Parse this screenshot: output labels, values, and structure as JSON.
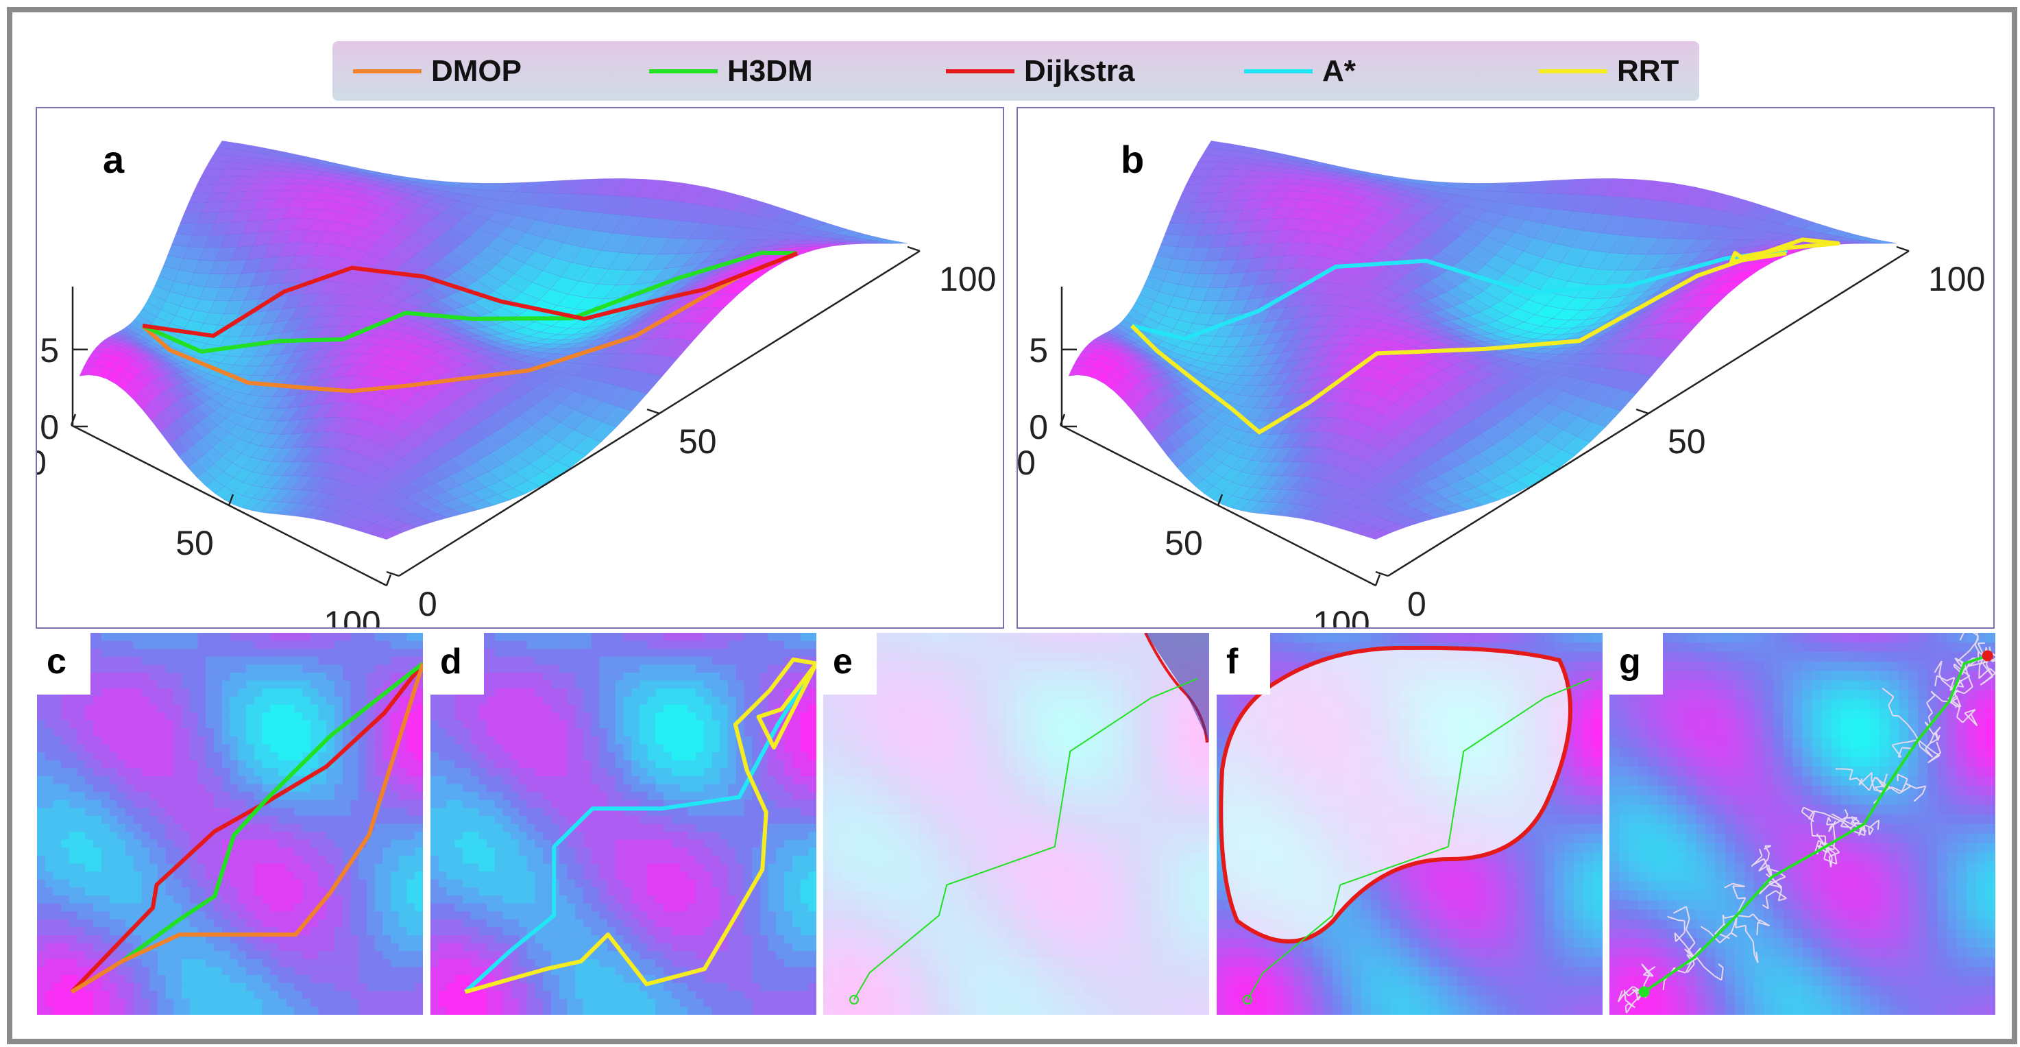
{
  "legend": {
    "items": [
      {
        "label": "DMOP",
        "color": "#f0832a"
      },
      {
        "label": "H3DM",
        "color": "#22e022"
      },
      {
        "label": "Dijkstra",
        "color": "#e41a1a"
      },
      {
        "label": "A*",
        "color": "#22e6f6"
      },
      {
        "label": "RRT",
        "color": "#f6ec22"
      }
    ]
  },
  "panel_labels": {
    "a": "a",
    "b": "b",
    "c": "c",
    "d": "d",
    "e": "e",
    "f": "f",
    "g": "g"
  },
  "colors": {
    "surface_low": "#7a7cf0",
    "surface_peak": "#ff2cf6",
    "surface_valley": "#22f4f4",
    "frame_border": "#8a8a8a"
  },
  "chart_data": [
    {
      "panel": "a",
      "type": "surface",
      "x_ticks": [
        "0",
        "50",
        "100"
      ],
      "y_ticks": [
        "0",
        "50",
        "100"
      ],
      "z_ticks": [
        "0",
        "5"
      ],
      "xlim": [
        0,
        100
      ],
      "ylim": [
        0,
        100
      ],
      "zlim": [
        0,
        5
      ],
      "series": [
        {
          "name": "DMOP",
          "color": "#f0832a",
          "points": [
            [
              2,
              38
            ],
            [
              10,
              33
            ],
            [
              30,
              30
            ],
            [
              45,
              28
            ],
            [
              58,
              26
            ],
            [
              68,
              30
            ],
            [
              78,
              48
            ],
            [
              88,
              60
            ],
            [
              96,
              72
            ],
            [
              99,
              80
            ]
          ]
        },
        {
          "name": "H3DM",
          "color": "#22e022",
          "points": [
            [
              2,
              38
            ],
            [
              15,
              38
            ],
            [
              30,
              42
            ],
            [
              45,
              40
            ],
            [
              50,
              52
            ],
            [
              56,
              62
            ],
            [
              66,
              74
            ],
            [
              78,
              82
            ],
            [
              90,
              84
            ],
            [
              99,
              80
            ]
          ]
        },
        {
          "name": "Dijkstra",
          "color": "#e41a1a",
          "points": [
            [
              2,
              38
            ],
            [
              15,
              44
            ],
            [
              25,
              54
            ],
            [
              35,
              60
            ],
            [
              45,
              66
            ],
            [
              55,
              72
            ],
            [
              68,
              74
            ],
            [
              82,
              74
            ],
            [
              92,
              70
            ],
            [
              99,
              80
            ]
          ]
        }
      ]
    },
    {
      "panel": "b",
      "type": "surface",
      "x_ticks": [
        "0",
        "50",
        "100"
      ],
      "y_ticks": [
        "0",
        "50",
        "100"
      ],
      "z_ticks": [
        "0",
        "5"
      ],
      "xlim": [
        0,
        100
      ],
      "ylim": [
        0,
        100
      ],
      "zlim": [
        0,
        5
      ],
      "series": [
        {
          "name": "A*",
          "color": "#22e6f6",
          "points": [
            [
              2,
              38
            ],
            [
              12,
              42
            ],
            [
              24,
              50
            ],
            [
              34,
              60
            ],
            [
              44,
              72
            ],
            [
              58,
              78
            ],
            [
              72,
              82
            ],
            [
              86,
              84
            ],
            [
              97,
              82
            ],
            [
              99,
              80
            ]
          ]
        },
        {
          "name": "RRT",
          "color": "#f6ec22",
          "points": [
            [
              2,
              38
            ],
            [
              10,
              32
            ],
            [
              22,
              26
            ],
            [
              34,
              22
            ],
            [
              44,
              18
            ],
            [
              52,
              24
            ],
            [
              58,
              36
            ],
            [
              68,
              52
            ],
            [
              78,
              62
            ],
            [
              86,
              78
            ],
            [
              92,
              92
            ],
            [
              99,
              90
            ],
            [
              96,
              84
            ],
            [
              90,
              82
            ],
            [
              86,
              86
            ],
            [
              90,
              80
            ],
            [
              99,
              80
            ]
          ]
        }
      ]
    },
    {
      "panel": "c",
      "type": "contour",
      "series": [
        {
          "name": "Dijkstra",
          "color": "#e41a1a",
          "points": [
            [
              9,
              6
            ],
            [
              30,
              28
            ],
            [
              31,
              34
            ],
            [
              46,
              48
            ],
            [
              60,
              56
            ],
            [
              75,
              65
            ],
            [
              90,
              79
            ],
            [
              100,
              92
            ]
          ]
        },
        {
          "name": "H3DM",
          "color": "#22e022",
          "points": [
            [
              9,
              6
            ],
            [
              22,
              14
            ],
            [
              37,
              25
            ],
            [
              46,
              31
            ],
            [
              51,
              47
            ],
            [
              60,
              57
            ],
            [
              76,
              73
            ],
            [
              100,
              92
            ]
          ]
        },
        {
          "name": "DMOP",
          "color": "#f0832a",
          "points": [
            [
              9,
              6
            ],
            [
              22,
              14
            ],
            [
              37,
              21
            ],
            [
              55,
              21
            ],
            [
              67,
              21
            ],
            [
              76,
              32
            ],
            [
              86,
              47
            ],
            [
              100,
              92
            ]
          ]
        }
      ]
    },
    {
      "panel": "d",
      "type": "contour",
      "series": [
        {
          "name": "A*",
          "color": "#22e6f6",
          "points": [
            [
              9,
              6
            ],
            [
              21,
              17
            ],
            [
              32,
              26
            ],
            [
              32,
              44
            ],
            [
              42,
              54
            ],
            [
              60,
              54
            ],
            [
              80,
              57
            ],
            [
              90,
              76
            ],
            [
              100,
              92
            ]
          ]
        },
        {
          "name": "RRT",
          "color": "#f6ec22",
          "points": [
            [
              9,
              6
            ],
            [
              30,
              12
            ],
            [
              39,
              14
            ],
            [
              46,
              21
            ],
            [
              56,
              8
            ],
            [
              71,
              12
            ],
            [
              78,
              24
            ],
            [
              86,
              38
            ],
            [
              87,
              53
            ],
            [
              82,
              64
            ],
            [
              79,
              76
            ],
            [
              88,
              85
            ],
            [
              94,
              93
            ],
            [
              100,
              92
            ],
            [
              91,
              80
            ],
            [
              85,
              78
            ],
            [
              89,
              70
            ],
            [
              100,
              92
            ]
          ]
        }
      ]
    },
    {
      "panel": "e",
      "type": "grid-expansion",
      "series": [
        {
          "name": "H3DM",
          "color": "#22e022",
          "points": [
            [
              8,
              4
            ],
            [
              12,
              11
            ],
            [
              30,
              26
            ],
            [
              32,
              34
            ],
            [
              60,
              44
            ],
            [
              64,
              69
            ],
            [
              85,
              83
            ],
            [
              97,
              88
            ]
          ]
        }
      ]
    },
    {
      "panel": "f",
      "type": "grid-expansion",
      "series": [
        {
          "name": "H3DM",
          "color": "#22e022",
          "points": [
            [
              8,
              4
            ],
            [
              12,
              11
            ],
            [
              30,
              26
            ],
            [
              32,
              34
            ],
            [
              60,
              44
            ],
            [
              64,
              69
            ],
            [
              85,
              83
            ],
            [
              97,
              88
            ]
          ]
        }
      ]
    },
    {
      "panel": "g",
      "type": "rrt-tree",
      "series": [
        {
          "name": "RRT",
          "color": "#22e022",
          "points": [
            [
              9,
              6
            ],
            [
              22,
              15
            ],
            [
              33,
              26
            ],
            [
              42,
              36
            ],
            [
              56,
              44
            ],
            [
              66,
              50
            ],
            [
              72,
              60
            ],
            [
              80,
              72
            ],
            [
              88,
              82
            ],
            [
              92,
              92
            ],
            [
              98,
              94
            ]
          ]
        }
      ]
    }
  ]
}
